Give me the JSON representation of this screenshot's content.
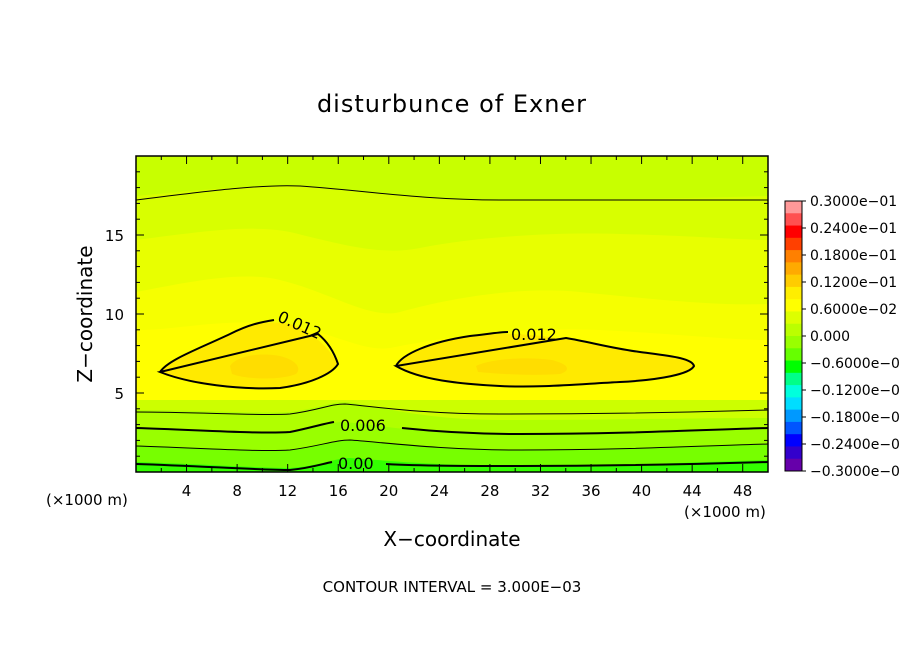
{
  "chart_data": {
    "type": "heatmap",
    "title": "disturbunce of Exner",
    "xlabel": "X−coordinate",
    "ylabel": "Z−coordinate",
    "x_unit": "(×1000 m)",
    "y_unit": "(×1000 m)",
    "xlim": [
      0,
      50
    ],
    "ylim": [
      0,
      20
    ],
    "x_ticks": [
      "4",
      "8",
      "12",
      "16",
      "20",
      "24",
      "28",
      "32",
      "36",
      "40",
      "44",
      "48"
    ],
    "y_ticks": [
      "5",
      "10",
      "15"
    ],
    "contour_interval_text": "CONTOUR INTERVAL = 3.000E−03",
    "contour_labels": [
      "0.012",
      "0.012",
      "0.006",
      "0.00"
    ],
    "colorbar": {
      "min": -0.03,
      "max": 0.03,
      "labels": [
        "0.3000e−01",
        "0.2400e−01",
        "0.1800e−01",
        "0.1200e−01",
        "0.6000e−02",
        "0.000",
        "−0.6000e−0",
        "−0.1200e−0",
        "−0.1800e−0",
        "−0.2400e−0",
        "−0.3000e−0"
      ],
      "colors": [
        "#ff8080",
        "#ff0000",
        "#ff8000",
        "#ffcc00",
        "#ffff00",
        "#99ff00",
        "#00ff00",
        "#00ffcc",
        "#0088ff",
        "#0000ff",
        "#6600aa"
      ]
    },
    "field_colors": {
      "c009": "#ffe000",
      "c008": "#fff000",
      "c007": "#ffff00",
      "c006": "#eeff00",
      "c005": "#d6ff00",
      "c004": "#bfff00",
      "c003": "#a6ff00",
      "c002": "#88ff00",
      "c001": "#55ff00",
      "c000": "#00ff00"
    }
  }
}
